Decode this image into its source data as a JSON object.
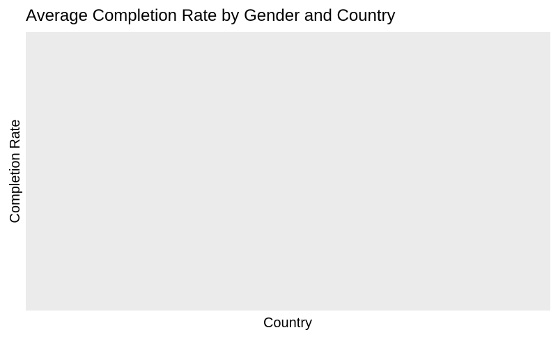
{
  "chart_data": {
    "type": "bar",
    "title": "Average Completion Rate by Gender and Country",
    "xlabel": "Country",
    "ylabel": "Completion Rate",
    "categories": [],
    "series": [],
    "grid": false,
    "legend": "none",
    "colors": {
      "panel_background": "#ebebeb",
      "page_background": "#ffffff",
      "text": "#000000"
    }
  }
}
